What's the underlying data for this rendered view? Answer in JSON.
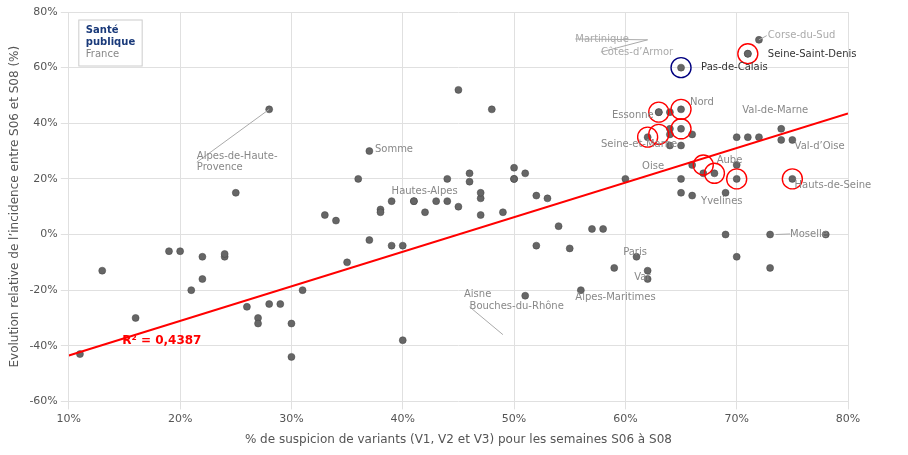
{
  "chart_data": {
    "type": "scatter",
    "xlabel": "% de suspicion de variants (V1, V2 et V3) pour les semaines S06 à S08",
    "ylabel": "Evolution relative de l’incidence entre S06 et S08 (%)",
    "xlim": [
      0.1,
      0.8
    ],
    "ylim": [
      -0.6,
      0.8
    ],
    "xticks": [
      {
        "value": 0.1,
        "label": "10%"
      },
      {
        "value": 0.2,
        "label": "20%"
      },
      {
        "value": 0.3,
        "label": "30%"
      },
      {
        "value": 0.4,
        "label": "40%"
      },
      {
        "value": 0.5,
        "label": "50%"
      },
      {
        "value": 0.6,
        "label": "60%"
      },
      {
        "value": 0.7,
        "label": "70%"
      },
      {
        "value": 0.8,
        "label": "80%"
      }
    ],
    "yticks": [
      {
        "value": -0.6,
        "label": "-60%"
      },
      {
        "value": -0.4,
        "label": "-40%"
      },
      {
        "value": -0.2,
        "label": "-20%"
      },
      {
        "value": 0.0,
        "label": "0%"
      },
      {
        "value": 0.2,
        "label": "20%"
      },
      {
        "value": 0.4,
        "label": "40%"
      },
      {
        "value": 0.6,
        "label": "60%"
      },
      {
        "value": 0.8,
        "label": "80%"
      }
    ],
    "grid": true,
    "background_color": "#ffffff",
    "grid_color": "#e0e0e0",
    "series": [
      {
        "type": "scatter",
        "color": "#666666",
        "edge_color": "#444444",
        "x": [
          0.11,
          0.13,
          0.16,
          0.19,
          0.2,
          0.21,
          0.22,
          0.22,
          0.24,
          0.24,
          0.25,
          0.26,
          0.27,
          0.27,
          0.28,
          0.28,
          0.29,
          0.3,
          0.3,
          0.31,
          0.33,
          0.34,
          0.35,
          0.36,
          0.37,
          0.37,
          0.38,
          0.38,
          0.39,
          0.39,
          0.4,
          0.4,
          0.41,
          0.41,
          0.42,
          0.43,
          0.44,
          0.44,
          0.45,
          0.45,
          0.46,
          0.46,
          0.47,
          0.47,
          0.47,
          0.48,
          0.49,
          0.5,
          0.5,
          0.5,
          0.51,
          0.51,
          0.52,
          0.52,
          0.53,
          0.54,
          0.55,
          0.56,
          0.57,
          0.58,
          0.59,
          0.6,
          0.61,
          0.62,
          0.62,
          0.62,
          0.63,
          0.63,
          0.64,
          0.64,
          0.64,
          0.64,
          0.65,
          0.65,
          0.65,
          0.65,
          0.65,
          0.65,
          0.66,
          0.66,
          0.66,
          0.67,
          0.68,
          0.69,
          0.69,
          0.7,
          0.7,
          0.7,
          0.7,
          0.71,
          0.71,
          0.71,
          0.72,
          0.72,
          0.73,
          0.73,
          0.74,
          0.74,
          0.75,
          0.75,
          0.78
        ],
        "values": [
          -0.43,
          -0.13,
          -0.3,
          -0.06,
          -0.06,
          -0.2,
          -0.08,
          -0.16,
          -0.08,
          -0.07,
          0.15,
          -0.26,
          -0.3,
          -0.32,
          -0.25,
          0.45,
          -0.25,
          -0.44,
          -0.32,
          -0.2,
          0.07,
          0.05,
          -0.1,
          0.2,
          0.3,
          -0.02,
          0.09,
          0.08,
          -0.04,
          0.12,
          -0.38,
          -0.04,
          0.12,
          0.12,
          0.08,
          0.12,
          0.12,
          0.2,
          0.52,
          0.1,
          0.22,
          0.19,
          0.13,
          0.07,
          0.15,
          0.45,
          0.08,
          0.24,
          0.2,
          0.2,
          0.22,
          -0.22,
          0.14,
          -0.04,
          0.13,
          0.03,
          -0.05,
          -0.2,
          0.02,
          0.02,
          -0.12,
          0.2,
          -0.08,
          -0.13,
          -0.16,
          0.35,
          0.44,
          0.44,
          0.44,
          0.36,
          0.38,
          0.32,
          0.6,
          0.45,
          0.32,
          0.38,
          0.2,
          0.15,
          0.36,
          0.25,
          0.14,
          0.22,
          0.22,
          0.15,
          0.0,
          0.35,
          0.25,
          0.2,
          -0.08,
          0.65,
          0.65,
          0.35,
          0.7,
          0.35,
          0.0,
          -0.12,
          0.38,
          0.34,
          0.34,
          0.2,
          0.0
        ]
      },
      {
        "type": "line",
        "color": "red",
        "x": [
          0.1,
          0.8
        ],
        "values": [
          -0.435,
          0.435
        ]
      },
      {
        "type": "scatter",
        "marker": "open_circle",
        "color": "red",
        "x": [
          0.63,
          0.63,
          0.65,
          0.65,
          0.62,
          0.67,
          0.68,
          0.7,
          0.71,
          0.75
        ],
        "values": [
          0.44,
          0.36,
          0.45,
          0.38,
          0.35,
          0.25,
          0.22,
          0.2,
          0.65,
          0.2
        ]
      },
      {
        "type": "scatter",
        "marker": "open_circle",
        "color": "navy",
        "x": [
          0.65
        ],
        "values": [
          0.6
        ]
      }
    ],
    "regression_label": {
      "text": "R² = 0,4387",
      "x": 0.148,
      "y": -0.395,
      "color": "red"
    },
    "annotations": [
      {
        "text": "Alpes-de-Haute-\nProvence",
        "x": 0.28,
        "y": 0.45,
        "text_x": 0.215,
        "text_y": 0.26,
        "color": "#888888"
      },
      {
        "text": "Somme",
        "x": 0.375,
        "y": 0.305,
        "color": "#888888"
      },
      {
        "text": "Hautes-Alpes",
        "x": 0.39,
        "y": 0.155,
        "color": "#888888"
      },
      {
        "text": "Aisne",
        "x": 0.455,
        "y": -0.215,
        "color": "#888888"
      },
      {
        "text": "Bouches-du-Rhône",
        "x": 0.49,
        "y": -0.36,
        "text_x": 0.46,
        "text_y": -0.26,
        "color": "#888888"
      },
      {
        "text": "Alpes-Maritimes",
        "x": 0.555,
        "y": -0.225,
        "color": "#888888"
      },
      {
        "text": "Essonne",
        "x": 0.588,
        "y": 0.43,
        "color": "#888888"
      },
      {
        "text": "Paris",
        "x": 0.598,
        "y": -0.065,
        "color": "#888888"
      },
      {
        "text": "Var",
        "x": 0.608,
        "y": -0.155,
        "color": "#888888"
      },
      {
        "text": "Seine-et-Marne",
        "x": 0.578,
        "y": 0.325,
        "color": "#888888"
      },
      {
        "text": "Oise",
        "x": 0.615,
        "y": 0.245,
        "color": "#888888"
      },
      {
        "text": "Nord",
        "x": 0.658,
        "y": 0.475,
        "color": "#888888"
      },
      {
        "text": "Pas-de-Calais",
        "x": 0.668,
        "y": 0.6,
        "color": "#333333"
      },
      {
        "text": "Aube",
        "x": 0.682,
        "y": 0.268,
        "color": "#888888"
      },
      {
        "text": "Yvelines",
        "x": 0.668,
        "y": 0.118,
        "color": "#888888"
      },
      {
        "text": "Val-de-Marne",
        "x": 0.705,
        "y": 0.445,
        "color": "#888888"
      },
      {
        "text": "Moselle",
        "x": 0.735,
        "y": 0.0,
        "text_x": 0.748,
        "text_y": 0.002,
        "color": "#888888"
      },
      {
        "text": "Hauts-de-Seine",
        "x": 0.752,
        "y": 0.178,
        "color": "#888888"
      },
      {
        "text": "Val-d’Oise",
        "x": 0.752,
        "y": 0.318,
        "color": "#888888"
      },
      {
        "text": "Seine-Saint-Denis",
        "x": 0.728,
        "y": 0.648,
        "color": "#333333"
      },
      {
        "text": "Corse-du-Sud",
        "x": 0.728,
        "y": 0.715,
        "color": "#aaaaaa"
      },
      {
        "text": "Martinique",
        "x": 0.555,
        "y": 0.703,
        "color": "#aaaaaa"
      },
      {
        "text": "Côtes-d’Armor",
        "x": 0.578,
        "y": 0.655,
        "color": "#aaaaaa"
      }
    ],
    "leader_color": "#aaaaaa",
    "leader_lines": [
      [
        0.555,
        0.703,
        0.62,
        0.7
      ],
      [
        0.72,
        0.7,
        0.727,
        0.715
      ],
      [
        0.62,
        0.7,
        0.578,
        0.656
      ]
    ],
    "logo": {
      "lines": [
        "Santé",
        "publique",
        "France"
      ],
      "colors": [
        "#1a3a7a",
        "#1a3a7a",
        "#888888"
      ]
    }
  }
}
